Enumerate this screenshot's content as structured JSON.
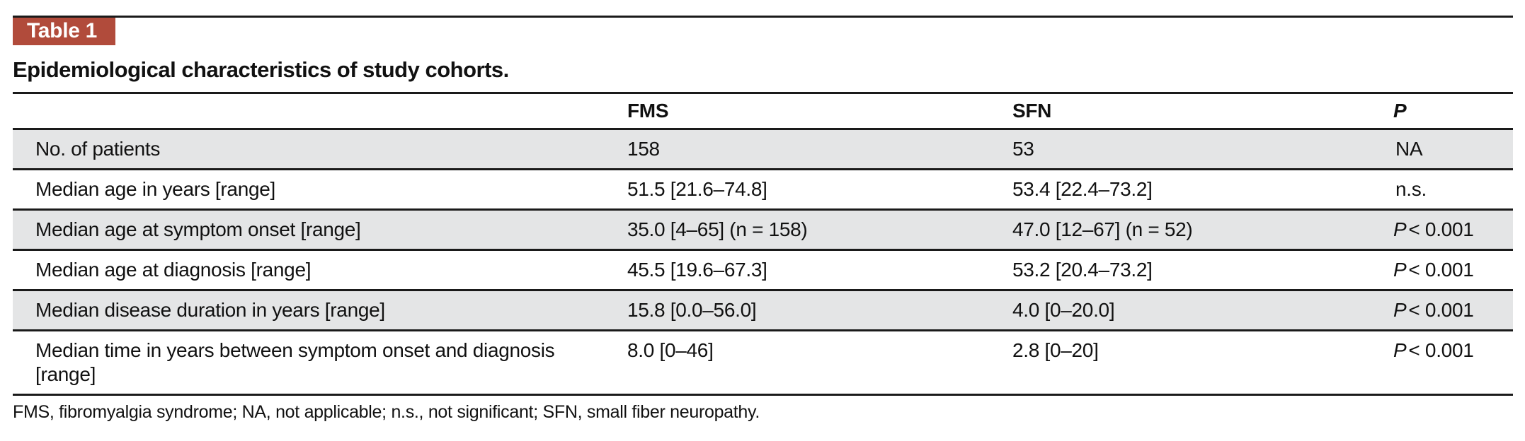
{
  "badge": {
    "label": "Table 1"
  },
  "title": "Epidemiological characteristics of study cohorts.",
  "table": {
    "header": {
      "fms": "FMS",
      "sfn": "SFN",
      "p": "P"
    },
    "rows": [
      {
        "label": "No. of patients",
        "fms": "158",
        "sfn": "53",
        "p_prefix": "",
        "p_value": "NA"
      },
      {
        "label": "Median age in years [range]",
        "fms": "51.5 [21.6–74.8]",
        "sfn": "53.4 [22.4–73.2]",
        "p_prefix": "",
        "p_value": "n.s."
      },
      {
        "label": "Median age at symptom onset [range]",
        "fms": "35.0 [4–65] (n = 158)",
        "sfn": "47.0 [12–67] (n = 52)",
        "p_prefix": "P",
        "p_value": "< 0.001"
      },
      {
        "label": "Median age at diagnosis [range]",
        "fms": "45.5 [19.6–67.3]",
        "sfn": "53.2 [20.4–73.2]",
        "p_prefix": "P",
        "p_value": "< 0.001"
      },
      {
        "label": "Median disease duration in years [range]",
        "fms": "15.8 [0.0–56.0]",
        "sfn": "4.0 [0–20.0]",
        "p_prefix": "P",
        "p_value": "< 0.001"
      },
      {
        "label": "Median time in years between symptom onset and diagnosis [range]",
        "fms": "8.0 [0–46]",
        "sfn": "2.8 [0–20]",
        "p_prefix": "P",
        "p_value": "< 0.001"
      }
    ]
  },
  "footnote": "FMS, fibromyalgia syndrome; NA, not applicable; n.s., not significant; SFN, small fiber neuropathy.",
  "colors": {
    "accent": "#b14b3b",
    "row_shade": "#e4e5e6",
    "rule": "#1a1a1a"
  }
}
